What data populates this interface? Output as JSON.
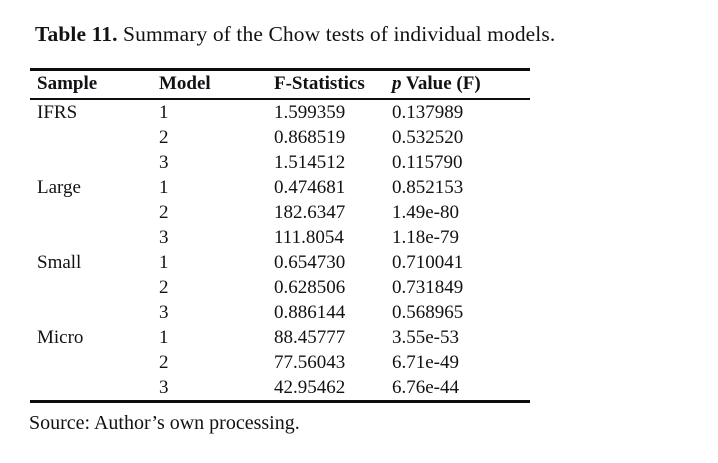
{
  "title": {
    "label": "Table 11.",
    "text": "Summary of the Chow tests of individual models."
  },
  "table": {
    "columns": {
      "sample": "Sample",
      "model": "Model",
      "f_stat": "F-Statistics",
      "p_italic": "p",
      "p_rest": "Value (F)"
    },
    "rows": [
      {
        "sample": "IFRS",
        "model": "1",
        "f": "1.599359",
        "p": "0.137989"
      },
      {
        "sample": "",
        "model": "2",
        "f": "0.868519",
        "p": "0.532520"
      },
      {
        "sample": "",
        "model": "3",
        "f": "1.514512",
        "p": "0.115790"
      },
      {
        "sample": "Large",
        "model": "1",
        "f": "0.474681",
        "p": "0.852153"
      },
      {
        "sample": "",
        "model": "2",
        "f": "182.6347",
        "p": "1.49e-80"
      },
      {
        "sample": "",
        "model": "3",
        "f": "111.8054",
        "p": "1.18e-79"
      },
      {
        "sample": "Small",
        "model": "1",
        "f": "0.654730",
        "p": "0.710041"
      },
      {
        "sample": "",
        "model": "2",
        "f": "0.628506",
        "p": "0.731849"
      },
      {
        "sample": "",
        "model": "3",
        "f": "0.886144",
        "p": "0.568965"
      },
      {
        "sample": "Micro",
        "model": "1",
        "f": "88.45777",
        "p": "3.55e-53"
      },
      {
        "sample": "",
        "model": "2",
        "f": "77.56043",
        "p": "6.71e-49"
      },
      {
        "sample": "",
        "model": "3",
        "f": "42.95462",
        "p": "6.76e-44"
      }
    ]
  },
  "source": "Source: Author’s own processing."
}
